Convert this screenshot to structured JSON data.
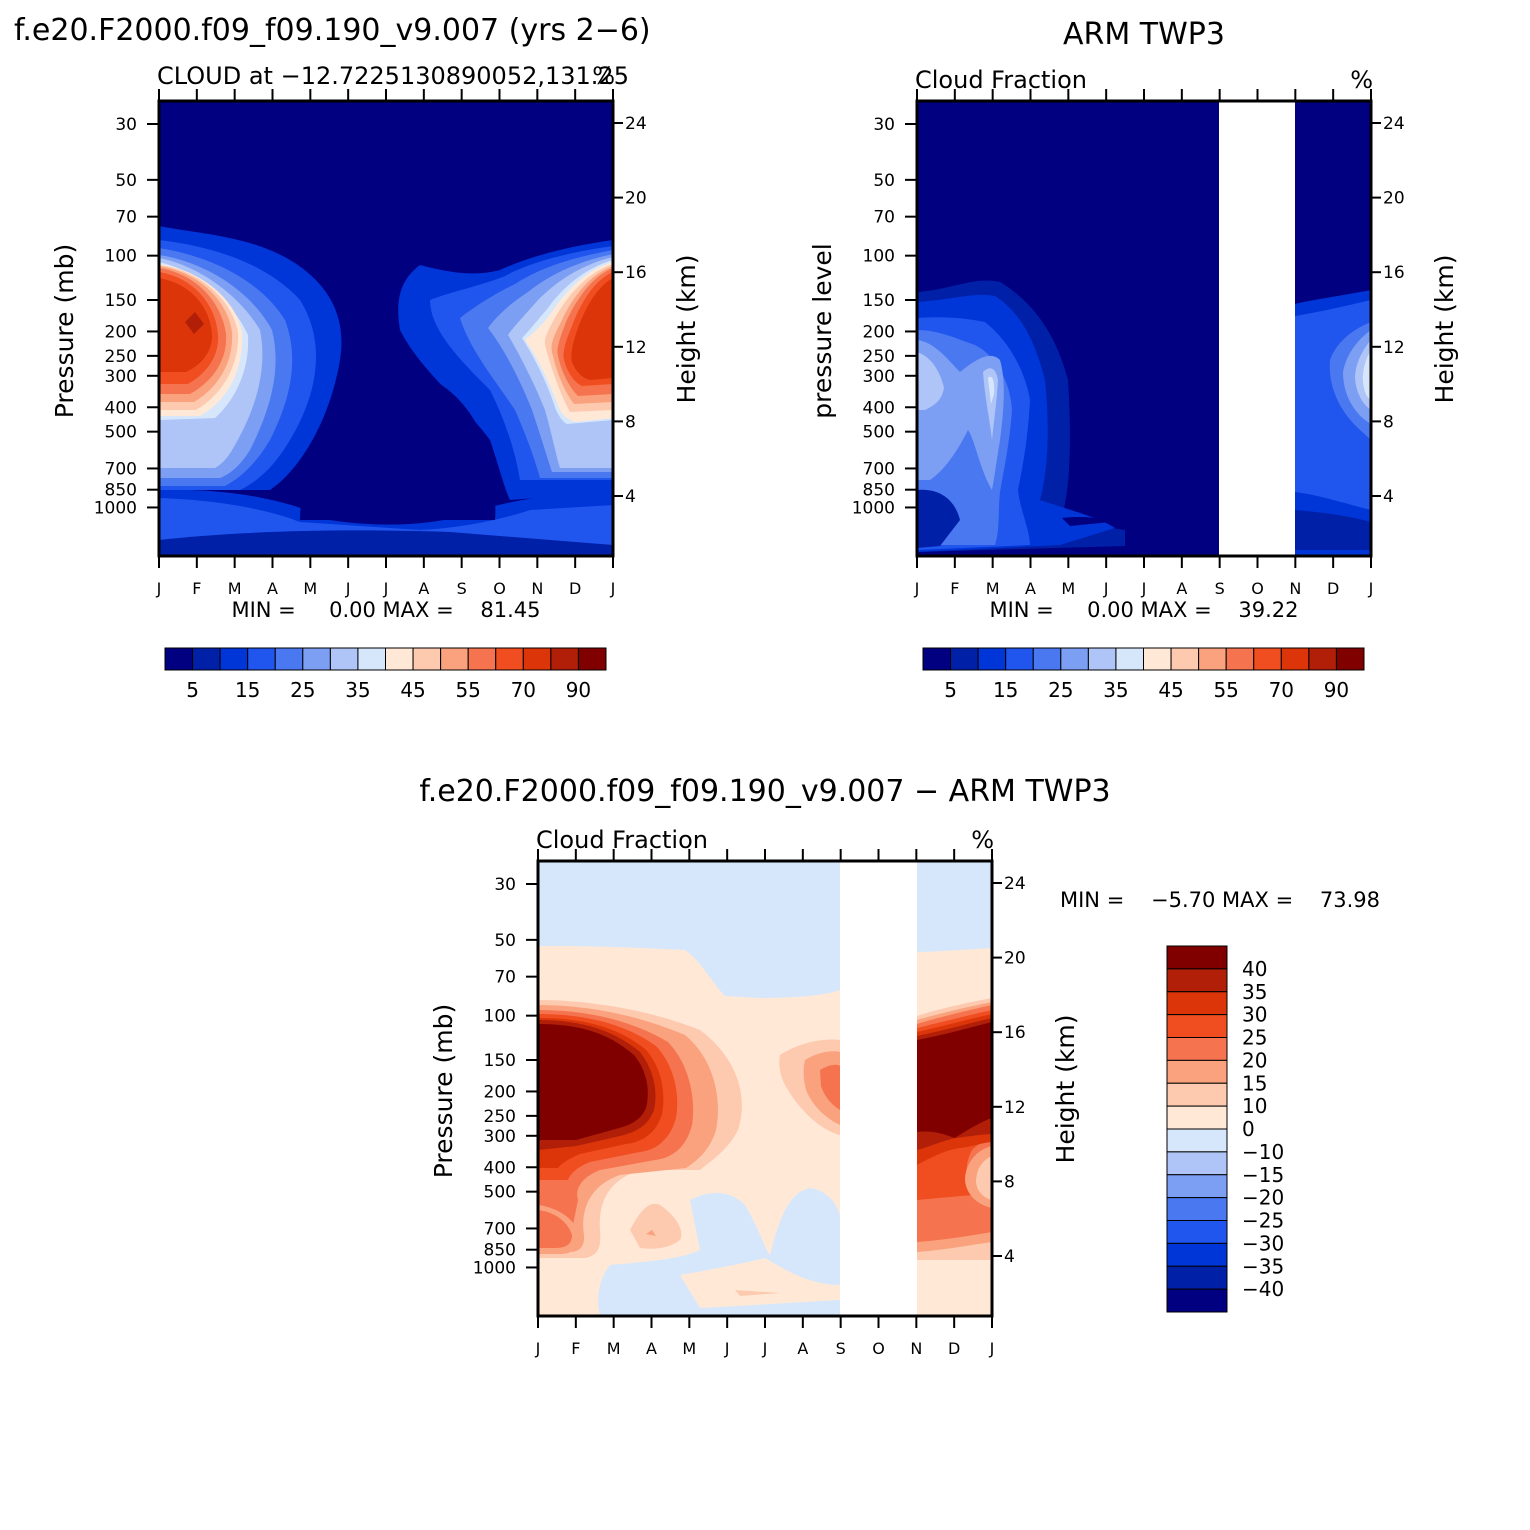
{
  "months": [
    "J",
    "F",
    "M",
    "A",
    "M",
    "J",
    "J",
    "A",
    "S",
    "O",
    "N",
    "D",
    "J"
  ],
  "pressure_ticks": [
    30,
    50,
    70,
    100,
    150,
    200,
    250,
    300,
    400,
    500,
    700,
    850,
    1000
  ],
  "height_ticks": [
    4,
    8,
    12,
    16,
    20,
    24
  ],
  "chart_data": [
    {
      "type": "heatmap",
      "title": "f.e20.F2000.f09_f09.190_v9.007 (yrs 2−6)",
      "subtitle_left": "CLOUD at −12.7225130890052,131.25",
      "subtitle_right": "%",
      "ylabel": "Pressure (mb)",
      "ylabel_right": "Height (km)",
      "xlabel": "",
      "stats": "MIN =     0.00 MAX =    81.45",
      "xlim": [
        "J",
        "J"
      ],
      "ylim": [
        1000,
        30
      ],
      "colorbar": {
        "colors": [
          "#000080",
          "#0020A8",
          "#0035D8",
          "#2055EE",
          "#4A78F0",
          "#7C9FF4",
          "#AFC5F8",
          "#D6E7FC",
          "#FFE9D6",
          "#FDCAB0",
          "#FAA27E",
          "#F5744F",
          "#F04E20",
          "#DB3509",
          "#B11F08",
          "#800000"
        ],
        "labels": [
          "5",
          "15",
          "25",
          "35",
          "45",
          "55",
          "70",
          "90"
        ]
      }
    },
    {
      "type": "heatmap",
      "title": "ARM TWP3",
      "subtitle_left": "Cloud Fraction",
      "subtitle_right": "%",
      "ylabel": "pressure level",
      "ylabel_right": "Height (km)",
      "xlabel": "",
      "stats": "MIN =     0.00 MAX =    39.22",
      "missing_months": [
        "S",
        "O",
        "N"
      ],
      "colorbar": {
        "colors": [
          "#000080",
          "#0020A8",
          "#0035D8",
          "#2055EE",
          "#4A78F0",
          "#7C9FF4",
          "#AFC5F8",
          "#D6E7FC",
          "#FFE9D6",
          "#FDCAB0",
          "#FAA27E",
          "#F5744F",
          "#F04E20",
          "#DB3509",
          "#B11F08",
          "#800000"
        ],
        "labels": [
          "5",
          "15",
          "25",
          "35",
          "45",
          "55",
          "70",
          "90"
        ]
      }
    },
    {
      "type": "heatmap",
      "title": "f.e20.F2000.f09_f09.190_v9.007 − ARM TWP3",
      "subtitle_left": "Cloud Fraction",
      "subtitle_right": "%",
      "ylabel": "Pressure (mb)",
      "ylabel_right": "Height (km)",
      "xlabel": "",
      "stats": "MIN =    −5.70 MAX =    73.98",
      "missing_months": [
        "S",
        "O",
        "N"
      ],
      "colorbar": {
        "colors": [
          "#000080",
          "#0020A8",
          "#0035D8",
          "#2055EE",
          "#4A78F0",
          "#7C9FF4",
          "#AFC5F8",
          "#D6E7FC",
          "#FFE9D6",
          "#FDCAB0",
          "#FAA27E",
          "#F5744F",
          "#F04E20",
          "#DB3509",
          "#B11F08",
          "#800000"
        ],
        "labels": [
          "40",
          "35",
          "30",
          "25",
          "20",
          "15",
          "10",
          "0",
          "−10",
          "−15",
          "−20",
          "−25",
          "−30",
          "−35",
          "−40"
        ]
      }
    }
  ]
}
